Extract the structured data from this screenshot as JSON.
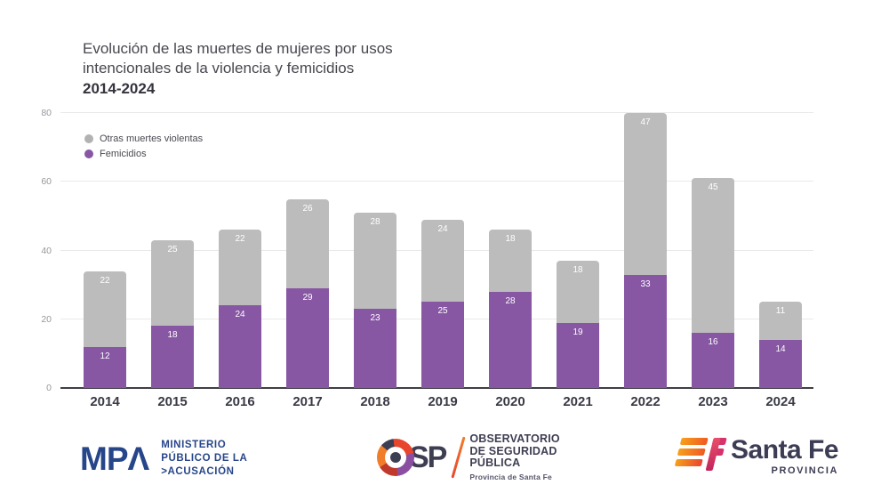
{
  "title": {
    "line1": "Evolución de las muertes de mujeres por usos",
    "line2": "intencionales de la violencia y femicidios",
    "year_range": "2014-2024"
  },
  "legend": [
    {
      "label": "Otras muertes violentas",
      "color": "#b3b2b3"
    },
    {
      "label": "Femicidios",
      "color": "#8757a4"
    }
  ],
  "chart_data": {
    "type": "bar",
    "stacked": true,
    "title": "Evolución de las muertes de mujeres por usos intencionales de la violencia y femicidios 2014-2024",
    "categories": [
      "2014",
      "2015",
      "2016",
      "2017",
      "2018",
      "2019",
      "2020",
      "2021",
      "2022",
      "2023",
      "2024"
    ],
    "series": [
      {
        "name": "Femicidios",
        "color": "#8757a4",
        "values": [
          12,
          18,
          24,
          29,
          23,
          25,
          28,
          19,
          33,
          16,
          14
        ]
      },
      {
        "name": "Otras muertes violentas",
        "color": "#bdbcbd",
        "values": [
          22,
          25,
          22,
          26,
          28,
          24,
          18,
          18,
          47,
          45,
          11
        ]
      }
    ],
    "totals": [
      34,
      43,
      46,
      55,
      51,
      49,
      46,
      37,
      80,
      61,
      25
    ],
    "xlabel": "",
    "ylabel": "",
    "ylim": [
      0,
      80
    ],
    "yticks": [
      0,
      20,
      40,
      60,
      80
    ],
    "grid": true,
    "legend_position": "top-left",
    "value_labels": true
  },
  "footer": {
    "mpa": {
      "word": "MPΛ",
      "lines": [
        "MINISTERIO",
        "PÚBLICO DE LA",
        ">ACUSACIÓN"
      ]
    },
    "osp": {
      "word": "SP",
      "lines": [
        "OBSERVATORIO",
        "DE SEGURIDAD",
        "PÚBLICA"
      ],
      "subline": "Provincia de Santa Fe"
    },
    "santafe": {
      "name": "Santa Fe",
      "subname": "PROVINCIA"
    }
  },
  "colors": {
    "femicidios": "#8757a4",
    "otras_muertes": "#bdbcbd",
    "axis": "#3e3e44",
    "grid": "#e9e9ea",
    "mpa_blue": "#27468a",
    "osp_dark": "#3e3e52",
    "sf_orange": "#f7a01b",
    "sf_magenta": "#c2255c"
  }
}
